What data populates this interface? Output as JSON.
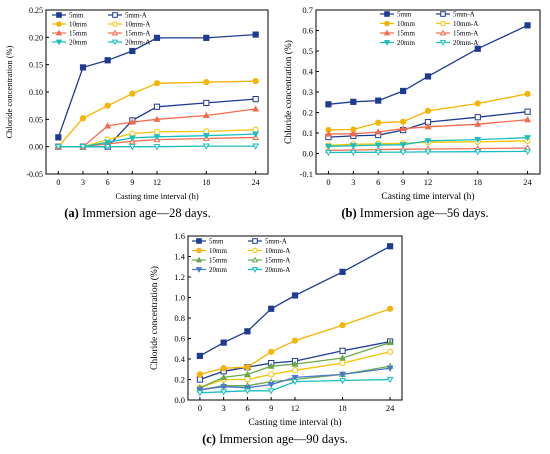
{
  "chart_data": [
    {
      "type": "line",
      "panel_label": "(a)",
      "caption": "Immersion age—28 days.",
      "xlabel": "Casting time interval (h)",
      "ylabel": "Chloride concentration (%)",
      "x": [
        0,
        3,
        6,
        9,
        12,
        18,
        24
      ],
      "ylim": [
        -0.05,
        0.25
      ],
      "yticks": [
        -0.05,
        0.0,
        0.05,
        0.1,
        0.15,
        0.2,
        0.25
      ],
      "ytick_labels": [
        "-0.05",
        "0.00",
        "0.05",
        "0.10",
        "0.15",
        "0.20",
        "0.25"
      ],
      "legend_columns": 2,
      "series": [
        {
          "name": "5mm",
          "color": "#1f3a93",
          "marker": "square",
          "filled": true,
          "values": [
            0.017,
            0.145,
            0.158,
            0.175,
            0.199,
            0.199,
            0.205
          ]
        },
        {
          "name": "5mm-A",
          "color": "#1f3a93",
          "marker": "square",
          "filled": false,
          "values": [
            0.0,
            0.0,
            0.0,
            0.048,
            0.073,
            0.08,
            0.087
          ]
        },
        {
          "name": "10mm",
          "color": "#f5b400",
          "marker": "circle",
          "filled": true,
          "values": [
            0.0,
            0.052,
            0.075,
            0.097,
            0.116,
            0.118,
            0.12
          ]
        },
        {
          "name": "10mm-A",
          "color": "#f5c300",
          "marker": "circle",
          "filled": false,
          "values": [
            0.0,
            0.0,
            0.013,
            0.024,
            0.027,
            0.028,
            0.031
          ]
        },
        {
          "name": "15mm",
          "color": "#f26b4d",
          "marker": "triangle",
          "filled": true,
          "values": [
            0.0,
            0.0,
            0.038,
            0.045,
            0.05,
            0.057,
            0.069
          ]
        },
        {
          "name": "15mm-A",
          "color": "#f26b4d",
          "marker": "triangle",
          "filled": false,
          "values": [
            0.0,
            0.0,
            0.005,
            0.01,
            0.013,
            0.015,
            0.017
          ]
        },
        {
          "name": "20mm",
          "color": "#19bfbf",
          "marker": "triangle-down",
          "filled": true,
          "values": [
            0.0,
            0.0,
            0.008,
            0.016,
            0.018,
            0.02,
            0.023
          ]
        },
        {
          "name": "20mm-A",
          "color": "#19bfbf",
          "marker": "triangle-down",
          "filled": false,
          "values": [
            0.0,
            0.0,
            0.0,
            0.0,
            0.0,
            0.001,
            0.001
          ]
        }
      ]
    },
    {
      "type": "line",
      "panel_label": "(b)",
      "caption": "Immersion age—56 days.",
      "xlabel": "Casting time interval (h)",
      "ylabel": "Chloride concentration (%)",
      "x": [
        0,
        3,
        6,
        9,
        12,
        18,
        24
      ],
      "ylim": [
        -0.1,
        0.7
      ],
      "yticks": [
        -0.1,
        0.0,
        0.1,
        0.2,
        0.3,
        0.4,
        0.5,
        0.6,
        0.7
      ],
      "ytick_labels": [
        "-0.1",
        "0.0",
        "0.1",
        "0.2",
        "0.3",
        "0.4",
        "0.5",
        "0.6",
        "0.7"
      ],
      "legend_columns": 2,
      "series": [
        {
          "name": "5mm",
          "color": "#1f3a93",
          "marker": "square",
          "filled": true,
          "values": [
            0.24,
            0.252,
            0.258,
            0.305,
            0.376,
            0.511,
            0.625
          ]
        },
        {
          "name": "5mm-A",
          "color": "#1f3a93",
          "marker": "square",
          "filled": false,
          "values": [
            0.08,
            0.086,
            0.09,
            0.114,
            0.153,
            0.177,
            0.204
          ]
        },
        {
          "name": "10mm",
          "color": "#f5b400",
          "marker": "circle",
          "filled": true,
          "values": [
            0.115,
            0.117,
            0.15,
            0.155,
            0.208,
            0.244,
            0.291
          ]
        },
        {
          "name": "10mm-A",
          "color": "#f5c300",
          "marker": "circle",
          "filled": false,
          "values": [
            0.04,
            0.045,
            0.047,
            0.05,
            0.055,
            0.057,
            0.062
          ]
        },
        {
          "name": "15mm",
          "color": "#f26b4d",
          "marker": "triangle",
          "filled": true,
          "values": [
            0.095,
            0.096,
            0.105,
            0.121,
            0.13,
            0.143,
            0.165
          ]
        },
        {
          "name": "15mm-A",
          "color": "#f26b4d",
          "marker": "triangle",
          "filled": false,
          "values": [
            0.015,
            0.017,
            0.019,
            0.021,
            0.022,
            0.024,
            0.027
          ]
        },
        {
          "name": "20mm",
          "color": "#19bfbf",
          "marker": "triangle-down",
          "filled": true,
          "values": [
            0.035,
            0.038,
            0.041,
            0.043,
            0.062,
            0.068,
            0.077
          ]
        },
        {
          "name": "20mm-A",
          "color": "#19bfbf",
          "marker": "triangle-down",
          "filled": false,
          "values": [
            0.005,
            0.006,
            0.006,
            0.007,
            0.008,
            0.009,
            0.01
          ]
        }
      ]
    },
    {
      "type": "line",
      "panel_label": "(c)",
      "caption": "Immersion age—90 days.",
      "xlabel": "Casting time interval (h)",
      "ylabel": "Chloride concentration (%)",
      "x": [
        0,
        3,
        6,
        9,
        12,
        18,
        24
      ],
      "ylim": [
        0.0,
        1.6
      ],
      "yticks": [
        0.0,
        0.2,
        0.4,
        0.6,
        0.8,
        1.0,
        1.2,
        1.4,
        1.6
      ],
      "ytick_labels": [
        "0.0",
        "0.2",
        "0.4",
        "0.6",
        "0.8",
        "1.0",
        "1.2",
        "1.4",
        "1.6"
      ],
      "legend_columns": 2,
      "series": [
        {
          "name": "5mm",
          "color": "#1f3a93",
          "marker": "square",
          "filled": true,
          "values": [
            0.43,
            0.56,
            0.67,
            0.89,
            1.02,
            1.25,
            1.5
          ]
        },
        {
          "name": "5mm-A",
          "color": "#1f3a93",
          "marker": "square",
          "filled": false,
          "values": [
            0.2,
            0.28,
            0.32,
            0.36,
            0.38,
            0.48,
            0.57
          ]
        },
        {
          "name": "10mm",
          "color": "#f5b400",
          "marker": "circle",
          "filled": true,
          "values": [
            0.25,
            0.31,
            0.32,
            0.47,
            0.58,
            0.73,
            0.89
          ]
        },
        {
          "name": "10mm-A",
          "color": "#f5c300",
          "marker": "circle",
          "filled": false,
          "values": [
            0.12,
            0.2,
            0.2,
            0.25,
            0.29,
            0.36,
            0.47
          ]
        },
        {
          "name": "15mm",
          "color": "#6aa84f",
          "marker": "triangle",
          "filled": true,
          "values": [
            0.12,
            0.22,
            0.25,
            0.33,
            0.35,
            0.41,
            0.56
          ]
        },
        {
          "name": "15mm-A",
          "color": "#6aa84f",
          "marker": "triangle",
          "filled": false,
          "values": [
            0.1,
            0.14,
            0.14,
            0.18,
            0.2,
            0.25,
            0.33
          ]
        },
        {
          "name": "20mm",
          "color": "#4a78c8",
          "marker": "triangle-down",
          "filled": true,
          "values": [
            0.1,
            0.13,
            0.12,
            0.15,
            0.22,
            0.25,
            0.31
          ]
        },
        {
          "name": "20mm-A",
          "color": "#19bfbf",
          "marker": "triangle-down",
          "filled": false,
          "values": [
            0.07,
            0.08,
            0.09,
            0.09,
            0.18,
            0.19,
            0.2
          ]
        }
      ]
    }
  ]
}
